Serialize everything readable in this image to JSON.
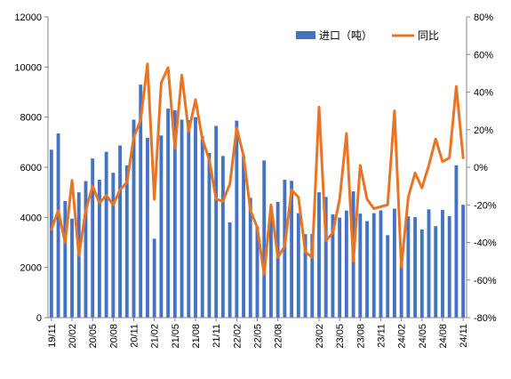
{
  "chart_data": {
    "type": "bar",
    "categories": [
      "19/11",
      "19/12",
      "20/01",
      "20/02",
      "20/03",
      "20/04",
      "20/05",
      "20/06",
      "20/07",
      "20/08",
      "20/09",
      "20/10",
      "20/11",
      "20/12",
      "21/01",
      "21/02",
      "21/03",
      "21/04",
      "21/05",
      "21/06",
      "21/07",
      "21/08",
      "21/09",
      "21/10",
      "21/11",
      "21/12",
      "22/01",
      "22/02",
      "22/03",
      "22/04",
      "22/05",
      "22/06",
      "22/07",
      "22/08",
      "22/09",
      "22/10",
      "22/11",
      "22/12",
      "23/01",
      "23/02",
      "23/03",
      "23/04",
      "23/05",
      "23/06",
      "23/07",
      "23/08",
      "23/09",
      "23/10",
      "23/11",
      "23/12",
      "24/01",
      "24/02",
      "24/03",
      "24/04",
      "24/05",
      "24/06",
      "24/07",
      "24/08",
      "24/09",
      "24/10",
      "24/11"
    ],
    "x_tick_labels": [
      "19/11",
      "20/02",
      "20/05",
      "20/08",
      "20/11",
      "21/02",
      "21/05",
      "21/08",
      "21/11",
      "22/02",
      "22/05",
      "22/08",
      "23/02",
      "23/05",
      "23/08",
      "23/11",
      "24/02",
      "24/05",
      "24/08",
      "24/11"
    ],
    "series": [
      {
        "name": "进口（吨）",
        "type": "bar",
        "axis": "left",
        "color": "#4472C4",
        "values": [
          6700,
          7350,
          4650,
          3950,
          5000,
          5450,
          6350,
          5500,
          6620,
          5780,
          6870,
          6070,
          7900,
          9300,
          7170,
          3150,
          7270,
          8340,
          8270,
          7900,
          7880,
          8000,
          7250,
          6570,
          7650,
          6450,
          3800,
          7860,
          6450,
          4780,
          3620,
          6270,
          4060,
          4620,
          5500,
          5460,
          4170,
          3330,
          3340,
          5000,
          4820,
          4120,
          3990,
          4270,
          5040,
          4150,
          3850,
          4170,
          4280,
          3290,
          4350,
          2140,
          4040,
          4010,
          3520,
          4320,
          3650,
          4300,
          4050,
          6080,
          4500
        ]
      },
      {
        "name": "同比",
        "type": "line",
        "axis": "right",
        "color": "#E97424",
        "values": [
          -33,
          -23,
          -40,
          -7,
          -47,
          -23,
          -10,
          -19,
          -15,
          -20,
          -12,
          -8,
          16,
          25,
          55,
          -17,
          45,
          53,
          10,
          49,
          19,
          36,
          15,
          4,
          -17,
          -18,
          -9,
          21,
          6,
          -23,
          -32,
          -57,
          -20,
          -48,
          -42,
          -12,
          -16,
          -45,
          -48,
          32,
          -39,
          -35,
          -17,
          18,
          -50,
          1,
          -17,
          -22,
          -21,
          -20,
          30,
          -53,
          -16,
          -3,
          -11,
          1,
          15,
          3,
          5,
          43,
          5
        ]
      }
    ],
    "y_left": {
      "min": 0,
      "max": 12000,
      "ticks": [
        "0",
        "2000",
        "4000",
        "6000",
        "8000",
        "10000",
        "12000"
      ]
    },
    "y_right": {
      "min": -80,
      "max": 80,
      "ticks": [
        "-80%",
        "-60%",
        "-40%",
        "-20%",
        "0%",
        "20%",
        "40%",
        "60%",
        "80%"
      ]
    },
    "legend": {
      "position": "top-right"
    },
    "grid": false
  }
}
